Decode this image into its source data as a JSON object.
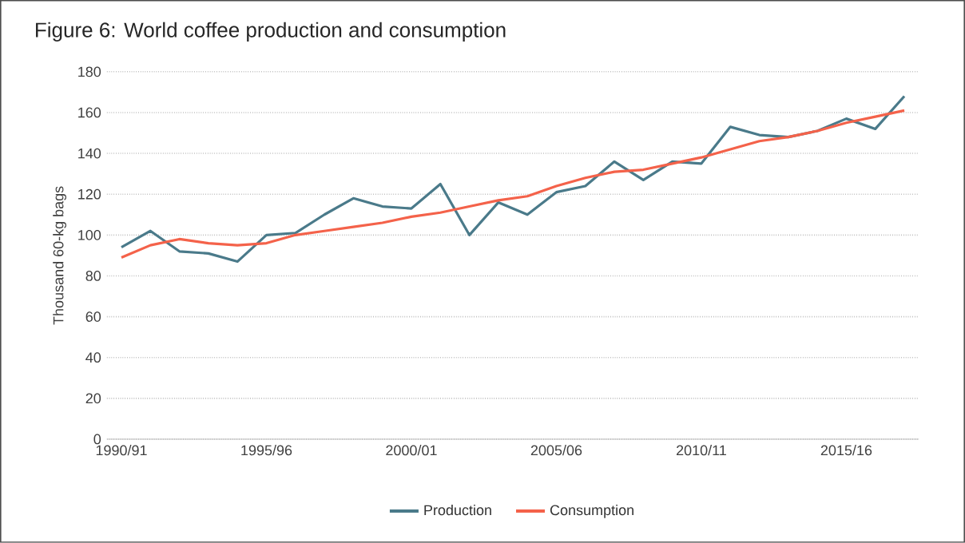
{
  "chart_data": {
    "type": "line",
    "title": "Figure 6: World coffee production and consumption",
    "ylabel": "Thousand 60-kg bags",
    "categories": [
      "1990/91",
      null,
      null,
      null,
      null,
      "1995/96",
      null,
      null,
      null,
      null,
      "2000/01",
      null,
      null,
      null,
      null,
      "2005/06",
      null,
      null,
      null,
      null,
      "2010/11",
      null,
      null,
      null,
      null,
      "2015/16",
      null,
      null
    ],
    "series": [
      {
        "name": "Production",
        "color": "#4a7a8a",
        "values": [
          94,
          102,
          92,
          91,
          87,
          100,
          101,
          110,
          118,
          114,
          113,
          125,
          100,
          116,
          110,
          121,
          124,
          136,
          127,
          136,
          135,
          153,
          149,
          148,
          151,
          157,
          152,
          168
        ]
      },
      {
        "name": "Consumption",
        "color": "#f4624a",
        "values": [
          89,
          95,
          98,
          96,
          95,
          96,
          100,
          102,
          104,
          106,
          109,
          111,
          114,
          117,
          119,
          124,
          128,
          131,
          132,
          135,
          138,
          142,
          146,
          148,
          151,
          155,
          158,
          161
        ]
      }
    ],
    "ylim": [
      0,
      180
    ],
    "yticks": [
      0,
      20,
      40,
      60,
      80,
      100,
      120,
      140,
      160,
      180
    ],
    "grid": "y",
    "legend": "bottom",
    "line_style": "solid",
    "marker": "none"
  }
}
